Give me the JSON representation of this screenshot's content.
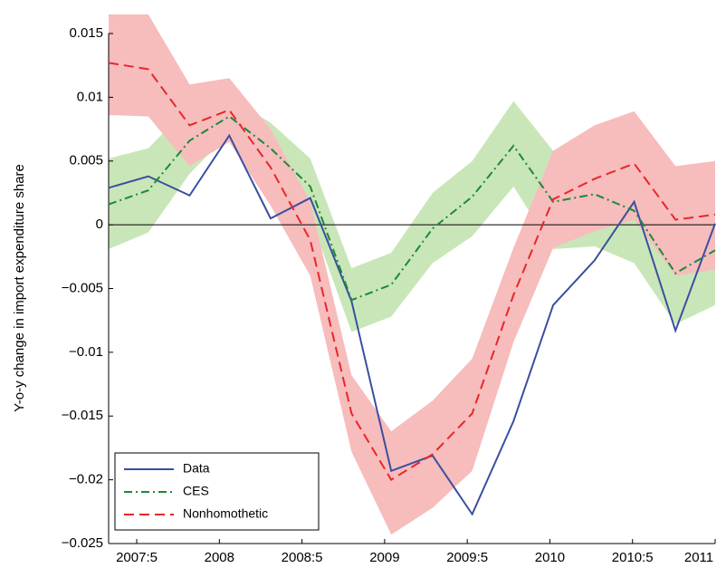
{
  "chart_data": {
    "type": "line",
    "y_label": "Y-o-y change in import expenditure share",
    "x": [
      2007.33,
      2007.57,
      2007.82,
      2008.06,
      2008.31,
      2008.55,
      2008.8,
      2009.04,
      2009.29,
      2009.53,
      2009.78,
      2010.02,
      2010.27,
      2010.51,
      2010.76,
      2011.0
    ],
    "xlim": [
      2007.33,
      2011
    ],
    "xticks": [
      {
        "value": 2007.5,
        "label": "2007:5"
      },
      2008,
      {
        "value": 2008.5,
        "label": "2008:5"
      },
      2009,
      {
        "value": 2009.5,
        "label": "2009:5"
      },
      2010,
      {
        "value": 2010.5,
        "label": "2010:5"
      },
      2011
    ],
    "ylim": [
      -0.025,
      0.015
    ],
    "yticks": [
      {
        "value": -0.025,
        "label": "−0.025"
      },
      {
        "value": -0.02,
        "label": "−0.02"
      },
      {
        "value": -0.015,
        "label": "−0.015"
      },
      {
        "value": -0.01,
        "label": "−0.01"
      },
      {
        "value": -0.005,
        "label": "−0.005"
      },
      0,
      0.005,
      0.01,
      0.015
    ],
    "legend": "lower left",
    "series": [
      {
        "name": "Data",
        "color": "#3a4fa0",
        "dash": "solid",
        "values": [
          0.0029,
          0.0038,
          0.0023,
          0.007,
          0.0005,
          0.0021,
          -0.006,
          -0.0193,
          -0.0181,
          -0.0227,
          -0.0154,
          -0.0063,
          -0.0028,
          0.0018,
          -0.0083,
          0.0001
        ]
      },
      {
        "name": "CES",
        "color": "#1a8a3a",
        "dash": "dashdot",
        "band_color": "#c9e6b8",
        "values": [
          0.0016,
          0.0027,
          0.0066,
          0.0085,
          0.006,
          0.003,
          -0.0059,
          -0.0047,
          -0.0003,
          0.0022,
          0.0062,
          0.0018,
          0.0024,
          0.0011,
          -0.0038,
          -0.002
        ],
        "lower": [
          -0.0019,
          -0.0006,
          0.004,
          0.0072,
          0.0042,
          0.0006,
          -0.0084,
          -0.0072,
          -0.003,
          -0.0009,
          0.003,
          -0.0019,
          -0.0017,
          -0.003,
          -0.0078,
          -0.0063
        ],
        "upper": [
          0.0052,
          0.006,
          0.0093,
          0.01,
          0.008,
          0.0052,
          -0.0034,
          -0.0022,
          0.0025,
          0.005,
          0.0097,
          0.0058,
          0.0064,
          0.0055,
          0.0004,
          0.0023
        ]
      },
      {
        "name": "Nonhomothetic",
        "color": "#e8262a",
        "dash": "dashed",
        "band_color": "#f7bcbc",
        "values": [
          0.0127,
          0.0122,
          0.0078,
          0.009,
          0.0045,
          -0.0012,
          -0.0148,
          -0.02,
          -0.018,
          -0.0148,
          -0.0055,
          0.002,
          0.0036,
          0.0048,
          0.0004,
          0.0008
        ],
        "lower": [
          0.0086,
          0.0085,
          0.0046,
          0.0065,
          0.0015,
          -0.004,
          -0.0178,
          -0.0243,
          -0.0222,
          -0.0193,
          -0.0092,
          -0.0018,
          -0.0005,
          0.0004,
          -0.004,
          -0.0035
        ],
        "upper": [
          0.0165,
          0.0165,
          0.011,
          0.0115,
          0.0075,
          0.0018,
          -0.0118,
          -0.0162,
          -0.0138,
          -0.0105,
          -0.0018,
          0.0058,
          0.0078,
          0.0089,
          0.0046,
          0.005
        ]
      }
    ]
  }
}
